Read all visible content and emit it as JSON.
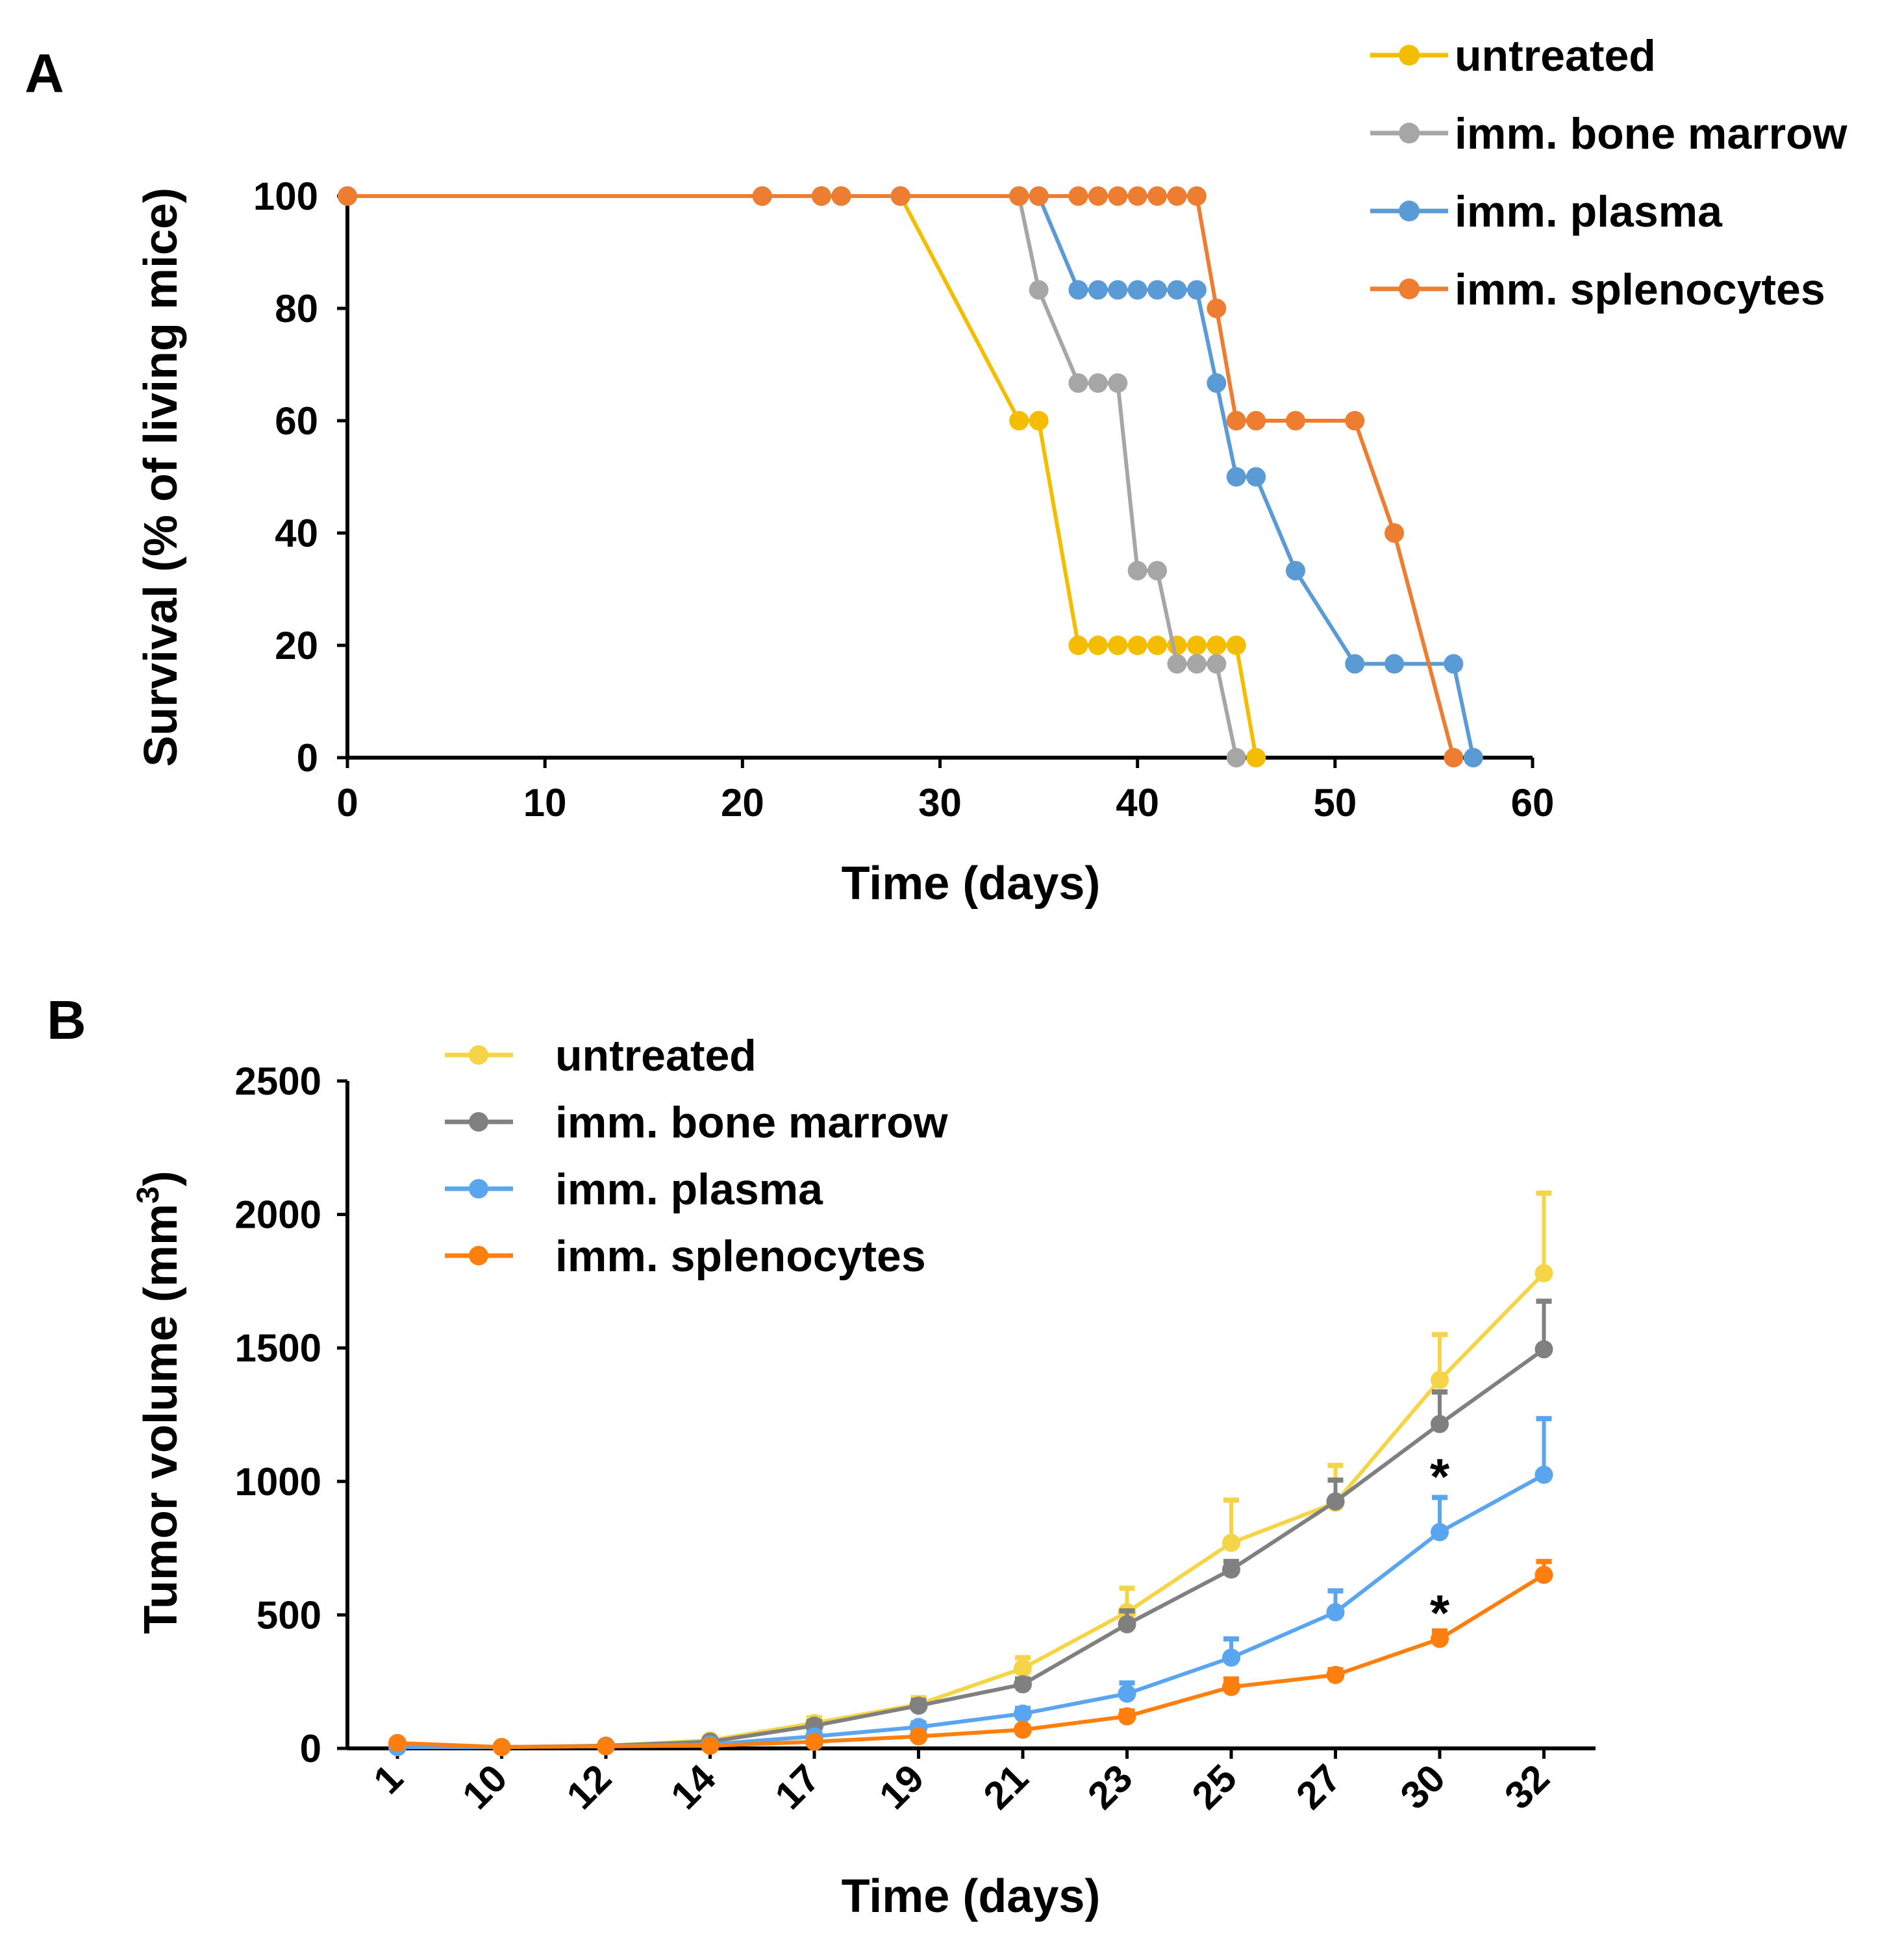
{
  "chart_data": [
    {
      "panel": "A",
      "type": "line",
      "subtype": "step-survival",
      "xlabel": "Time (days)",
      "ylabel": "Survival (% of living mice)",
      "xlim": [
        0,
        60
      ],
      "ylim": [
        0,
        100
      ],
      "xticks": [
        0,
        10,
        20,
        30,
        40,
        50,
        60
      ],
      "yticks": [
        0,
        20,
        40,
        60,
        80,
        100
      ],
      "legend_position": "top-right",
      "grid": false,
      "series": [
        {
          "name": "untreated",
          "color": "#f5bd00",
          "points": [
            [
              0,
              100
            ],
            [
              21,
              100
            ],
            [
              24,
              100
            ],
            [
              25,
              100
            ],
            [
              28,
              100
            ],
            [
              34,
              60
            ],
            [
              35,
              60
            ],
            [
              37,
              20
            ],
            [
              38,
              20
            ],
            [
              39,
              20
            ],
            [
              40,
              20
            ],
            [
              41,
              20
            ],
            [
              42,
              20
            ],
            [
              43,
              20
            ],
            [
              44,
              20
            ],
            [
              45,
              20
            ],
            [
              46,
              0
            ]
          ]
        },
        {
          "name": "imm. bone marrow",
          "color": "#a6a6a6",
          "points": [
            [
              0,
              100
            ],
            [
              21,
              100
            ],
            [
              24,
              100
            ],
            [
              25,
              100
            ],
            [
              28,
              100
            ],
            [
              34,
              100
            ],
            [
              35,
              83.3
            ],
            [
              37,
              66.7
            ],
            [
              38,
              66.7
            ],
            [
              39,
              66.7
            ],
            [
              40,
              33.3
            ],
            [
              41,
              33.3
            ],
            [
              42,
              16.7
            ],
            [
              43,
              16.7
            ],
            [
              44,
              16.7
            ],
            [
              45,
              0
            ]
          ]
        },
        {
          "name": "imm. plasma",
          "color": "#5b9bd5",
          "points": [
            [
              0,
              100
            ],
            [
              21,
              100
            ],
            [
              24,
              100
            ],
            [
              25,
              100
            ],
            [
              28,
              100
            ],
            [
              34,
              100
            ],
            [
              35,
              100
            ],
            [
              37,
              83.3
            ],
            [
              38,
              83.3
            ],
            [
              39,
              83.3
            ],
            [
              40,
              83.3
            ],
            [
              41,
              83.3
            ],
            [
              42,
              83.3
            ],
            [
              43,
              83.3
            ],
            [
              44,
              66.7
            ],
            [
              45,
              50
            ],
            [
              46,
              50
            ],
            [
              48,
              33.3
            ],
            [
              51,
              16.7
            ],
            [
              53,
              16.7
            ],
            [
              56,
              16.7
            ],
            [
              57,
              0
            ]
          ]
        },
        {
          "name": "imm. splenocytes",
          "color": "#ed7d31",
          "points": [
            [
              0,
              100
            ],
            [
              21,
              100
            ],
            [
              24,
              100
            ],
            [
              25,
              100
            ],
            [
              28,
              100
            ],
            [
              34,
              100
            ],
            [
              35,
              100
            ],
            [
              37,
              100
            ],
            [
              38,
              100
            ],
            [
              39,
              100
            ],
            [
              40,
              100
            ],
            [
              41,
              100
            ],
            [
              42,
              100
            ],
            [
              43,
              100
            ],
            [
              44,
              80
            ],
            [
              45,
              60
            ],
            [
              46,
              60
            ],
            [
              48,
              60
            ],
            [
              51,
              60
            ],
            [
              53,
              40
            ],
            [
              56,
              0
            ]
          ]
        }
      ]
    },
    {
      "panel": "B",
      "type": "line",
      "subtype": "error-bars",
      "xlabel": "Time (days)",
      "ylabel_prefix": "Tumor volume (mm",
      "ylabel_superscript": "3",
      "ylabel_suffix": ")",
      "ylim": [
        0,
        2500
      ],
      "yticks": [
        0,
        500,
        1000,
        1500,
        2000,
        2500
      ],
      "categories": [
        "1",
        "10",
        "12",
        "14",
        "17",
        "19",
        "21",
        "23",
        "25",
        "27",
        "30",
        "32"
      ],
      "legend_position": "top-left",
      "grid": false,
      "series": [
        {
          "name": "untreated",
          "color": "#f5d547",
          "values": [
            5,
            5,
            10,
            30,
            95,
            165,
            300,
            510,
            770,
            920,
            1380,
            1780
          ],
          "errors": [
            0,
            0,
            5,
            10,
            20,
            25,
            40,
            90,
            160,
            140,
            170,
            300
          ]
        },
        {
          "name": "imm. bone marrow",
          "color": "#808080",
          "values": [
            5,
            5,
            10,
            25,
            85,
            160,
            240,
            465,
            670,
            925,
            1215,
            1495
          ],
          "errors": [
            0,
            0,
            5,
            8,
            15,
            20,
            20,
            50,
            30,
            80,
            120,
            180
          ]
        },
        {
          "name": "imm. plasma",
          "color": "#5aa5f0",
          "values": [
            5,
            5,
            8,
            15,
            45,
            80,
            130,
            205,
            340,
            510,
            810,
            1025
          ],
          "errors": [
            0,
            0,
            3,
            5,
            10,
            15,
            20,
            40,
            70,
            80,
            130,
            210
          ]
        },
        {
          "name": "imm. splenocytes",
          "color": "#ff7f0e",
          "values": [
            20,
            5,
            8,
            10,
            25,
            45,
            70,
            120,
            230,
            275,
            410,
            650
          ],
          "errors": [
            0,
            0,
            2,
            3,
            5,
            8,
            10,
            20,
            30,
            20,
            30,
            50
          ]
        }
      ],
      "annotations": [
        {
          "text": "*",
          "category": "30",
          "value": 1050
        },
        {
          "text": "*",
          "category": "30",
          "value": 540
        }
      ]
    }
  ]
}
